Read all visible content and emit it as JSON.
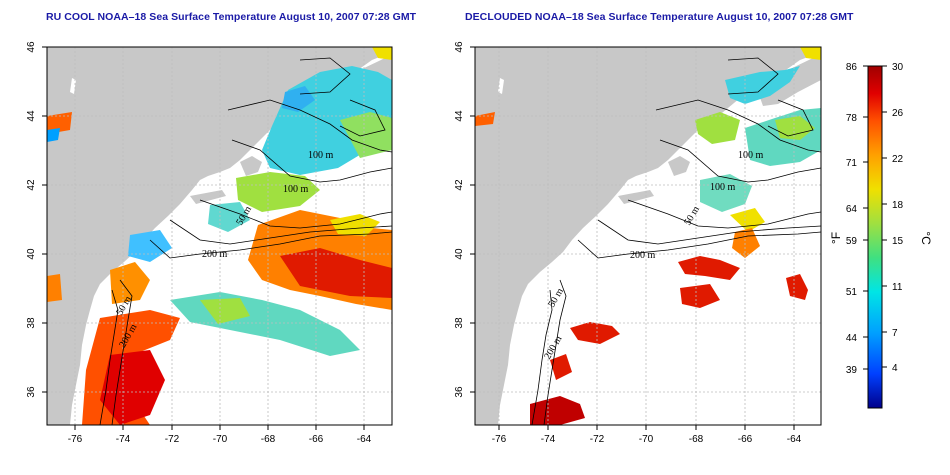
{
  "panels": [
    {
      "title": "RU COOL NOAA–18 Sea Surface Temperature August 10, 2007 07:28 GMT",
      "lon_ticks": [
        "-76",
        "-74",
        "-72",
        "-70",
        "-68",
        "-66",
        "-64"
      ],
      "lat_ticks": [
        "46",
        "44",
        "42",
        "40",
        "38",
        "36"
      ],
      "contour_labels": [
        "100 m",
        "100 m",
        "50 m",
        "200 m",
        "50 m",
        "200 m"
      ]
    },
    {
      "title": "DECLOUDED NOAA–18 Sea Surface Temperature August 10, 2007 07:28 GMT",
      "lon_ticks": [
        "-76",
        "-74",
        "-72",
        "-70",
        "-68",
        "-66",
        "-64"
      ],
      "lat_ticks": [
        "46",
        "44",
        "42",
        "40",
        "38",
        "36"
      ],
      "contour_labels": [
        "100 m",
        "100 m",
        "50 m",
        "200 m",
        "50 m",
        "200 m"
      ]
    }
  ],
  "colorbar": {
    "fahrenheit_ticks": [
      "86",
      "78",
      "71",
      "64",
      "59",
      "51",
      "44",
      "39"
    ],
    "celsius_ticks": [
      "30",
      "26",
      "22",
      "18",
      "15",
      "11",
      "7",
      "4"
    ],
    "fahrenheit_unit": "°F",
    "celsius_unit": "°C",
    "colors": [
      "#00008b",
      "#0040ff",
      "#00a0ff",
      "#00e5e5",
      "#40e080",
      "#a0e040",
      "#f0e000",
      "#ffa000",
      "#ff5000",
      "#e00000",
      "#a00000"
    ]
  },
  "colors": {
    "land": "#c8c8c8",
    "title": "#1a1aa6",
    "grid": "#bdbdbd"
  }
}
